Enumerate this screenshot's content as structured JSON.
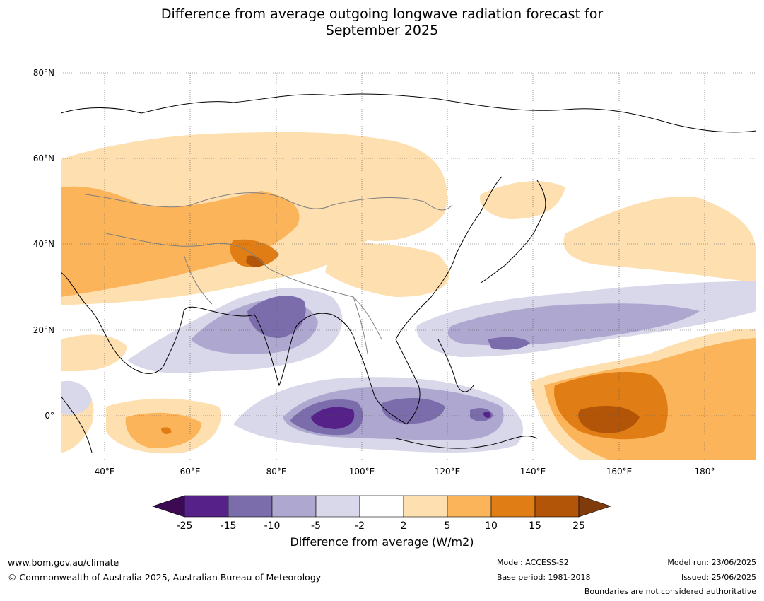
{
  "title_line1": "Difference from average outgoing longwave radiation forecast for",
  "title_line2": "September 2025",
  "lat_labels": [
    "80°N",
    "60°N",
    "40°N",
    "20°N",
    "0°"
  ],
  "lon_labels": [
    "40°E",
    "60°E",
    "80°E",
    "100°E",
    "120°E",
    "140°E",
    "160°E",
    "180°"
  ],
  "colorbar": {
    "title": "Difference from average (W/m2)",
    "tick_labels": [
      "-25",
      "-15",
      "-10",
      "-5",
      "-2",
      "2",
      "5",
      "10",
      "15",
      "25"
    ],
    "colors": [
      "#56228a",
      "#7b6cab",
      "#aea7cf",
      "#d8d8ea",
      "#ffffff",
      "#fddfb0",
      "#fbb45a",
      "#e07e15",
      "#b25509"
    ],
    "under_color": "#3b0a52",
    "over_color": "#7f3b0c"
  },
  "footer": {
    "website": "www.bom.gov.au/climate",
    "copyright": "© Commonwealth of Australia 2025, Australian Bureau of Meteorology",
    "model": "Model: ACCESS-S2",
    "base_period": "Base period: 1981-2018",
    "model_run": "Model run: 23/06/2025",
    "issued": "Issued: 25/06/2025",
    "disclaimer": "Boundaries are not considered authoritative"
  }
}
